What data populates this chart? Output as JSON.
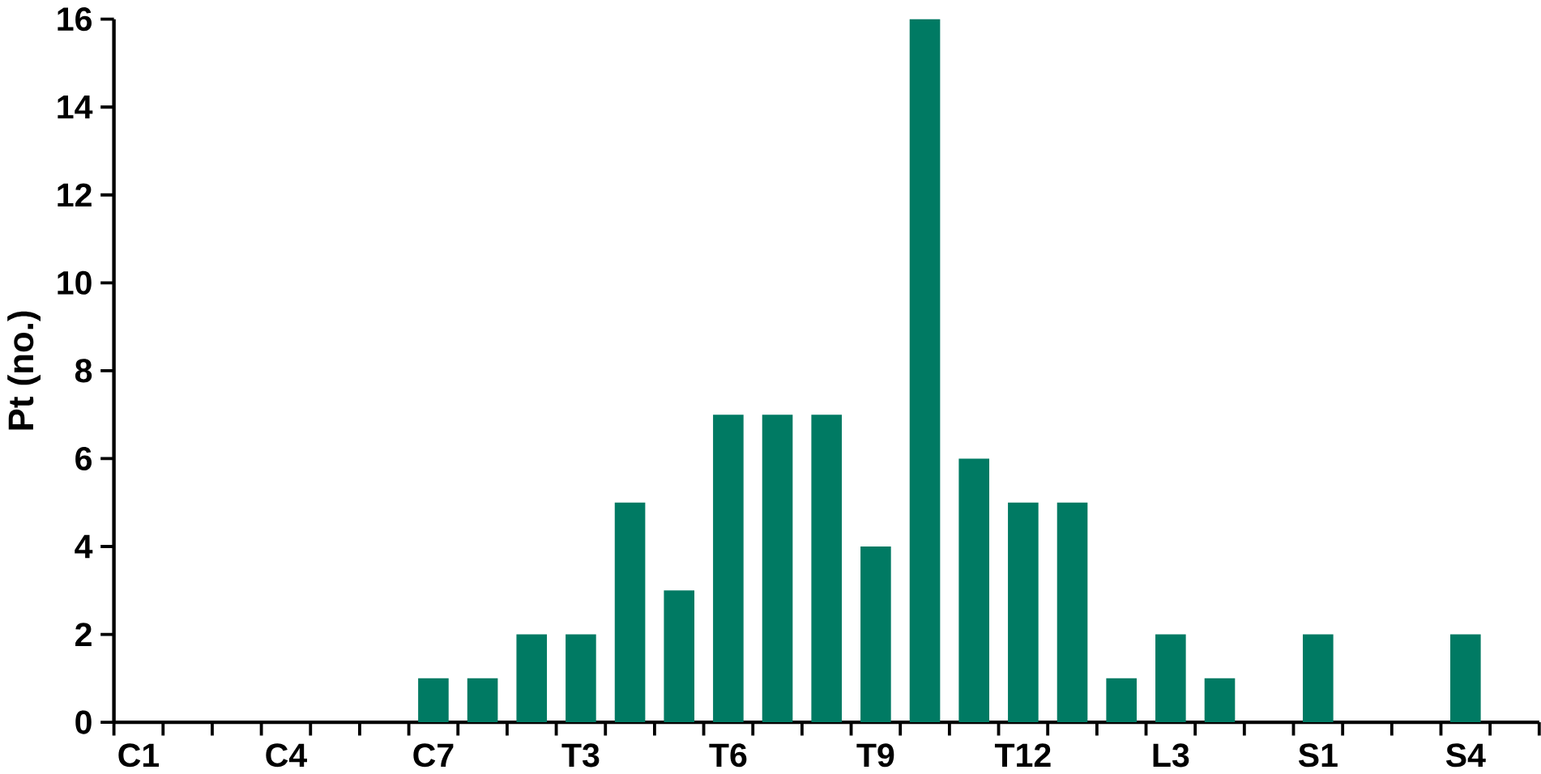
{
  "chart_data": {
    "type": "bar",
    "ylabel": "Pt (no.)",
    "categories": [
      "C1",
      null,
      null,
      "C4",
      null,
      null,
      "C7",
      null,
      null,
      "T3",
      null,
      null,
      "T6",
      null,
      null,
      "T9",
      null,
      null,
      "T12",
      null,
      null,
      "L3",
      null,
      null,
      "S1",
      null,
      null,
      "S4",
      null
    ],
    "values": [
      0,
      0,
      0,
      0,
      0,
      0,
      1,
      1,
      2,
      2,
      5,
      3,
      7,
      7,
      7,
      4,
      16,
      6,
      5,
      5,
      1,
      2,
      1,
      0,
      2,
      0,
      0,
      2,
      0
    ],
    "color": "#007a63",
    "ylim": [
      0,
      16
    ],
    "yticks": [
      0,
      2,
      4,
      6,
      8,
      10,
      12,
      14,
      16
    ]
  }
}
